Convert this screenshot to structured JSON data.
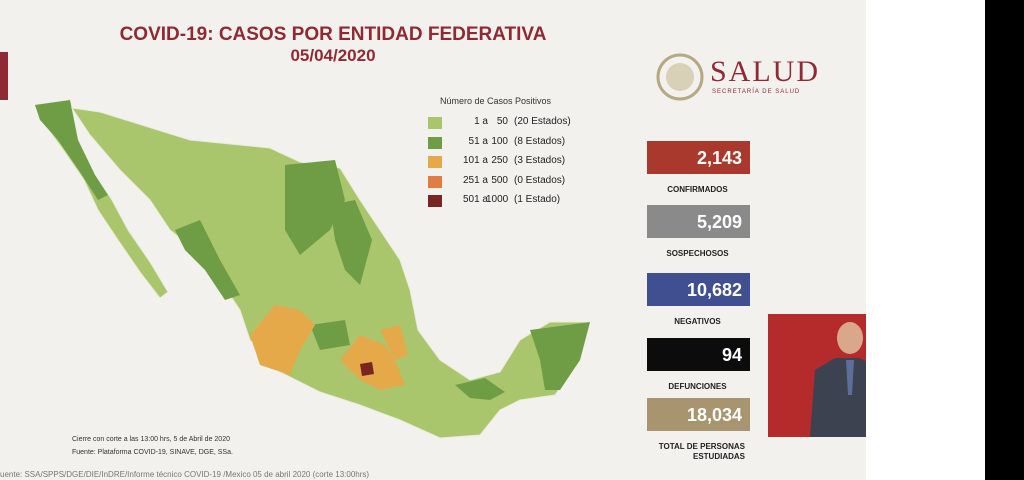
{
  "title": "COVID-19: CASOS POR ENTIDAD FEDERATIVA",
  "date": "05/04/2020",
  "logo": {
    "name": "SALUD",
    "subtitle": "SECRETARÍA DE SALUD"
  },
  "legend": {
    "title": "Número de Casos Positivos",
    "items": [
      {
        "from": "1 a",
        "to": "50",
        "count": "(20 Estados)",
        "color": "#a9c66c"
      },
      {
        "from": "51 a",
        "to": "100",
        "count": "(8 Estados)",
        "color": "#6f9d45"
      },
      {
        "from": "101 a",
        "to": "250",
        "count": "(3 Estados)",
        "color": "#e5a94a"
      },
      {
        "from": "251 a",
        "to": "500",
        "count": "(0 Estados)",
        "color": "#e07d40"
      },
      {
        "from": "501 a",
        "to": "1000",
        "count": "(1 Estado)",
        "color": "#7a2620"
      }
    ]
  },
  "stats": [
    {
      "value": "2,143",
      "label": "CONFIRMADOS",
      "color": "#a8392c"
    },
    {
      "value": "5,209",
      "label": "SOSPECHOSOS",
      "color": "#8a8a8a"
    },
    {
      "value": "10,682",
      "label": "NEGATIVOS",
      "color": "#3f4f8f"
    },
    {
      "value": "94",
      "label": "DEFUNCIONES",
      "color": "#0c0c0c"
    },
    {
      "value": "18,034",
      "label": "TOTAL DE PERSONAS ESTUDIADAS",
      "color": "#a99470"
    }
  ],
  "notes": [
    "Cierre con corte a las 13:00 hrs, 5 de Abril de 2020",
    "Fuente: Plataforma COVID-19, SINAVE, DGE, SSa."
  ],
  "footer": "uente: SSA/SPPS/DGE/DIE/InDRE/Informe técnico COVID-19 /Mexico 05 de abril 2020 (corte 13:00hrs)"
}
